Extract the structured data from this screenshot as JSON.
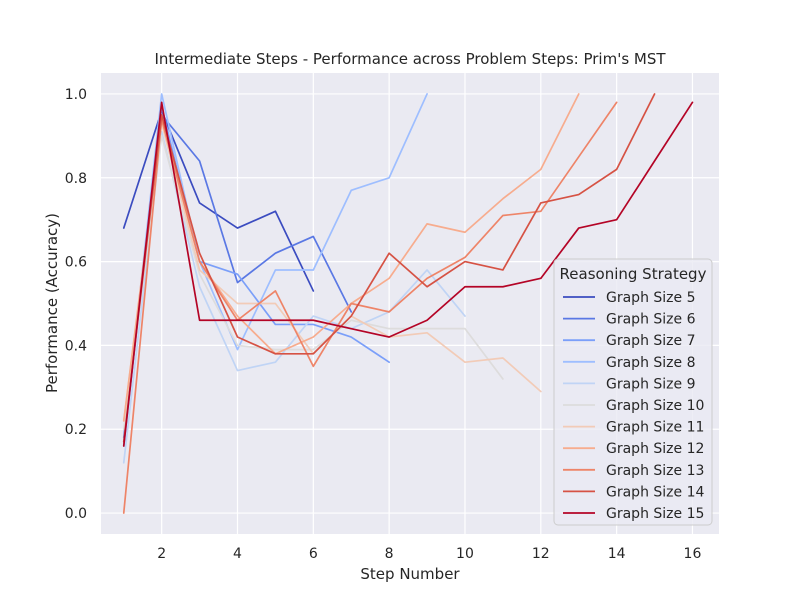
{
  "chart_data": {
    "type": "line",
    "title": "Intermediate Steps - Performance across Problem Steps: Prim's MST",
    "xlabel": "Step Number",
    "ylabel": "Performance (Accuracy)",
    "xlim": [
      0.4,
      16.7
    ],
    "ylim": [
      -0.05,
      1.05
    ],
    "xticks": [
      2,
      4,
      6,
      8,
      10,
      12,
      14,
      16
    ],
    "yticks": [
      0.0,
      0.2,
      0.4,
      0.6,
      0.8,
      1.0
    ],
    "xtick_labels": [
      "2",
      "4",
      "6",
      "8",
      "10",
      "12",
      "14",
      "16"
    ],
    "ytick_labels": [
      "0.0",
      "0.2",
      "0.4",
      "0.6",
      "0.8",
      "1.0"
    ],
    "grid": true,
    "legend": {
      "title": "Reasoning Strategy",
      "placement": "lower-right"
    },
    "series": [
      {
        "name": "Graph Size 5",
        "color": "#3b4cc0",
        "x": [
          1,
          2,
          3,
          4,
          5,
          6
        ],
        "y": [
          0.68,
          0.96,
          0.74,
          0.68,
          0.72,
          0.53
        ]
      },
      {
        "name": "Graph Size 6",
        "color": "#5a78e4",
        "x": [
          1,
          2,
          3,
          4,
          5,
          6,
          7
        ],
        "y": [
          0.18,
          0.95,
          0.84,
          0.55,
          0.62,
          0.66,
          0.48
        ]
      },
      {
        "name": "Graph Size 7",
        "color": "#7b9ff9",
        "x": [
          1,
          2,
          3,
          4,
          5,
          6,
          7,
          8
        ],
        "y": [
          0.16,
          0.97,
          0.6,
          0.57,
          0.45,
          0.45,
          0.42,
          0.36
        ]
      },
      {
        "name": "Graph Size 8",
        "color": "#9ebeff",
        "x": [
          1,
          2,
          3,
          4,
          5,
          6,
          7,
          8,
          9
        ],
        "y": [
          0.17,
          1.0,
          0.6,
          0.39,
          0.58,
          0.58,
          0.77,
          0.8,
          1.0
        ]
      },
      {
        "name": "Graph Size 9",
        "color": "#c0d4f5",
        "x": [
          1,
          2,
          3,
          4,
          5,
          6,
          7,
          8,
          9,
          10
        ],
        "y": [
          0.12,
          0.91,
          0.54,
          0.34,
          0.36,
          0.47,
          0.44,
          0.48,
          0.58,
          0.47
        ]
      },
      {
        "name": "Graph Size 10",
        "color": "#dddcdc",
        "x": [
          1,
          2,
          3,
          4,
          5,
          6,
          7,
          8,
          9,
          10,
          11
        ],
        "y": [
          0.2,
          0.9,
          0.57,
          0.4,
          0.39,
          0.39,
          0.46,
          0.44,
          0.44,
          0.44,
          0.32
        ]
      },
      {
        "name": "Graph Size 11",
        "color": "#f2cbb7",
        "x": [
          1,
          2,
          3,
          4,
          5,
          6,
          7,
          8,
          9,
          10,
          11,
          12
        ],
        "y": [
          0.22,
          0.93,
          0.58,
          0.5,
          0.5,
          0.38,
          0.47,
          0.42,
          0.43,
          0.36,
          0.37,
          0.29
        ]
      },
      {
        "name": "Graph Size 12",
        "color": "#f7ac8e",
        "x": [
          1,
          2,
          3,
          4,
          5,
          6,
          7,
          8,
          9,
          10,
          11,
          12,
          13
        ],
        "y": [
          0.22,
          0.94,
          0.6,
          0.47,
          0.38,
          0.42,
          0.5,
          0.56,
          0.69,
          0.67,
          0.75,
          0.82,
          1.0
        ]
      },
      {
        "name": "Graph Size 13",
        "color": "#ee8468",
        "x": [
          1,
          2,
          3,
          4,
          5,
          6,
          7,
          8,
          9,
          10,
          11,
          12,
          13,
          14
        ],
        "y": [
          0.0,
          0.94,
          0.6,
          0.46,
          0.53,
          0.35,
          0.5,
          0.48,
          0.56,
          0.61,
          0.71,
          0.72,
          0.85,
          0.98
        ]
      },
      {
        "name": "Graph Size 14",
        "color": "#d65244",
        "x": [
          1,
          2,
          3,
          4,
          5,
          6,
          7,
          8,
          9,
          10,
          11,
          12,
          13,
          14,
          15
        ],
        "y": [
          0.17,
          0.95,
          0.62,
          0.42,
          0.38,
          0.38,
          0.47,
          0.62,
          0.54,
          0.6,
          0.58,
          0.74,
          0.76,
          0.82,
          1.0
        ]
      },
      {
        "name": "Graph Size 15",
        "color": "#b40426",
        "x": [
          1,
          2,
          3,
          4,
          5,
          6,
          7,
          8,
          9,
          10,
          11,
          12,
          13,
          14,
          15,
          16
        ],
        "y": [
          0.16,
          0.98,
          0.46,
          0.46,
          0.46,
          0.46,
          0.44,
          0.42,
          0.46,
          0.54,
          0.54,
          0.56,
          0.68,
          0.7,
          0.84,
          0.98
        ]
      }
    ]
  }
}
